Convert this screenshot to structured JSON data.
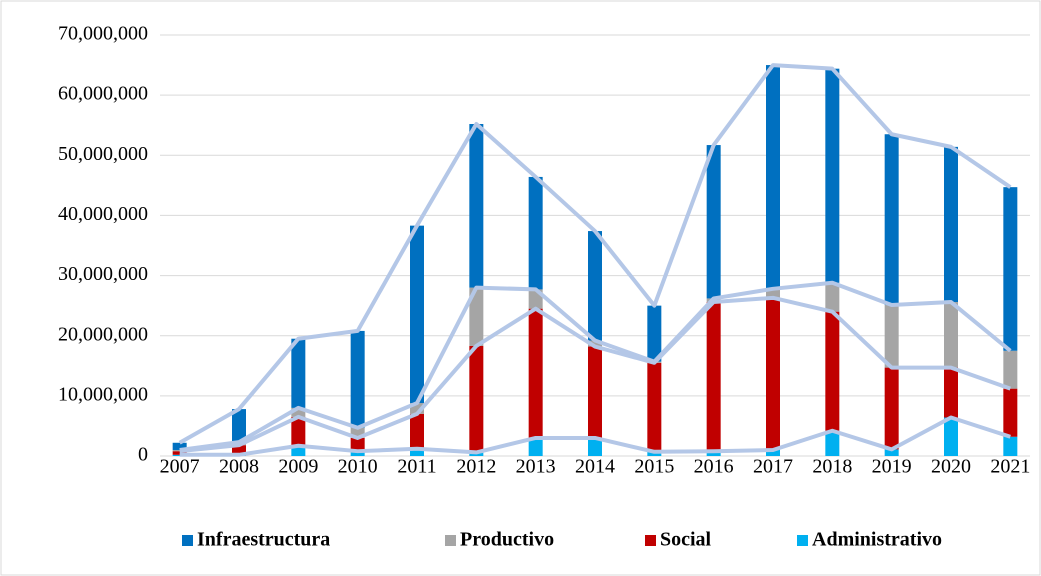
{
  "chart_data": {
    "type": "stacked_bar",
    "categories": [
      "2007",
      "2008",
      "2009",
      "2010",
      "2011",
      "2012",
      "2013",
      "2014",
      "2015",
      "2016",
      "2017",
      "2018",
      "2019",
      "2020",
      "2021"
    ],
    "series": [
      {
        "name": "Infraestructura",
        "color": "#0070c0",
        "values": [
          1200000,
          5500000,
          11500000,
          16100000,
          29500000,
          27200000,
          18700000,
          18200000,
          9300000,
          25500000,
          37200000,
          35600000,
          28400000,
          25800000,
          27200000
        ]
      },
      {
        "name": "Productivo",
        "color": "#a5a5a5",
        "values": [
          200000,
          500000,
          1500000,
          1700000,
          1800000,
          9700000,
          3200000,
          1000000,
          200000,
          600000,
          1500000,
          4800000,
          10400000,
          10900000,
          6300000
        ]
      },
      {
        "name": "Social",
        "color": "#c00000",
        "values": [
          600000,
          1600000,
          4800000,
          2200000,
          5800000,
          17700000,
          21500000,
          15200000,
          14800000,
          24800000,
          25300000,
          19800000,
          13600000,
          8300000,
          8000000
        ]
      },
      {
        "name": "Administrativo",
        "color": "#00b0f0",
        "values": [
          200000,
          200000,
          1700000,
          800000,
          1200000,
          600000,
          3000000,
          3000000,
          700000,
          800000,
          1000000,
          4200000,
          1100000,
          6400000,
          3200000
        ]
      }
    ],
    "ylim": [
      0,
      70000000
    ],
    "yticks": [
      0,
      {
        "value": 10000000,
        "label": "10,000,000"
      },
      {
        "value": 20000000,
        "label": "20,000,000"
      },
      {
        "value": 30000000,
        "label": "30,000,000"
      },
      {
        "value": 40000000,
        "label": "40,000,000"
      },
      {
        "value": 50000000,
        "label": "50,000,000"
      },
      {
        "value": 60000000,
        "label": "60,000,000"
      },
      {
        "value": 70000000,
        "label": "70,000,000"
      }
    ],
    "grid": true,
    "legend": "bottom",
    "series_lines": true,
    "series_line_color": "#b4c7e7"
  }
}
